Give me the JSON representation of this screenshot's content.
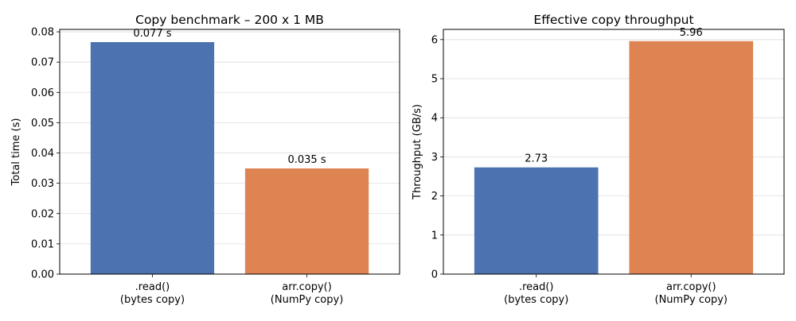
{
  "chart_data": [
    {
      "type": "bar",
      "title": "Copy benchmark – 200 x 1 MB",
      "xlabel": "",
      "ylabel": "Total time (s)",
      "categories": [
        ".read()\n(bytes copy)",
        "arr.copy()\n(NumPy copy)"
      ],
      "category_lines": [
        [
          ".read()",
          "(bytes copy)"
        ],
        [
          "arr.copy()",
          "(NumPy copy)"
        ]
      ],
      "values": [
        0.0766,
        0.0349
      ],
      "data_labels": [
        "0.077 s",
        "0.035 s"
      ],
      "colors": [
        "#4c72b0",
        "#dd8452"
      ],
      "ylim": [
        0,
        0.0808
      ],
      "yticks": [
        0.0,
        0.01,
        0.02,
        0.03,
        0.04,
        0.05,
        0.06,
        0.07,
        0.08
      ],
      "ytick_labels": [
        "0.00",
        "0.01",
        "0.02",
        "0.03",
        "0.04",
        "0.05",
        "0.06",
        "0.07",
        "0.08"
      ],
      "grid": "y",
      "legend": null
    },
    {
      "type": "bar",
      "title": "Effective copy throughput",
      "xlabel": "",
      "ylabel": "Throughput (GB/s)",
      "categories": [
        ".read()\n(bytes copy)",
        "arr.copy()\n(NumPy copy)"
      ],
      "category_lines": [
        [
          ".read()",
          "(bytes copy)"
        ],
        [
          "arr.copy()",
          "(NumPy copy)"
        ]
      ],
      "values": [
        2.73,
        5.96
      ],
      "data_labels": [
        "2.73",
        "5.96"
      ],
      "colors": [
        "#4c72b0",
        "#dd8452"
      ],
      "ylim": [
        0,
        6.26
      ],
      "yticks": [
        0,
        1,
        2,
        3,
        4,
        5,
        6
      ],
      "ytick_labels": [
        "0",
        "1",
        "2",
        "3",
        "4",
        "5",
        "6"
      ],
      "grid": "y",
      "legend": null
    }
  ]
}
